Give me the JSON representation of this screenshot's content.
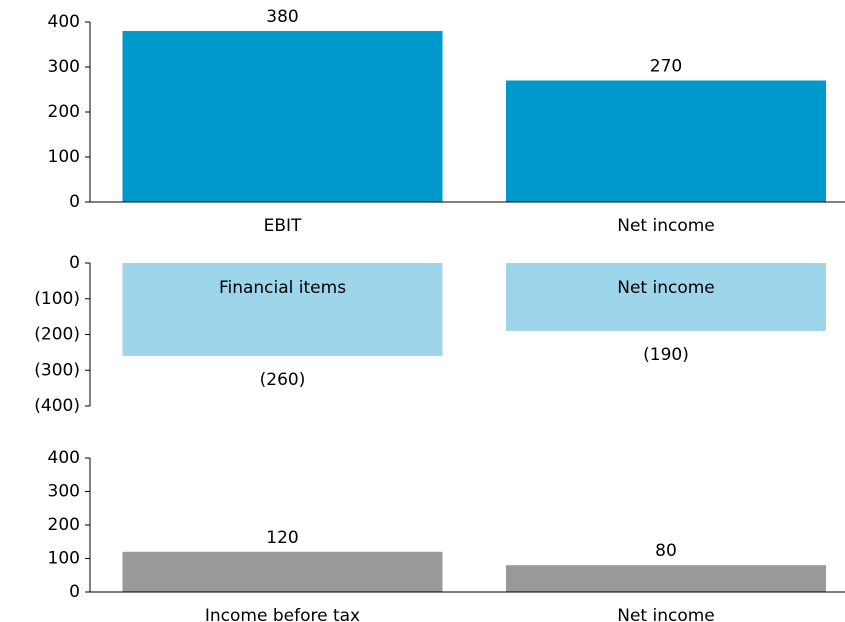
{
  "chart_data": [
    {
      "type": "bar",
      "categories": [
        "EBIT",
        "Net income"
      ],
      "values": [
        380,
        270
      ],
      "color": "#0099cc",
      "ylim": [
        0,
        400
      ],
      "yticks": [
        0,
        100,
        200,
        300,
        400
      ]
    },
    {
      "type": "bar",
      "categories": [
        "Financial items",
        "Net income"
      ],
      "values": [
        -260,
        -190
      ],
      "value_labels": [
        "(260)",
        "(190)"
      ],
      "color": "#9dd5ea",
      "ylim": [
        -400,
        0
      ],
      "yticks": [
        {
          "value": -400,
          "label": "(400)"
        },
        {
          "value": -300,
          "label": "(300)"
        },
        {
          "value": -200,
          "label": "(200)"
        },
        {
          "value": -100,
          "label": "(100)"
        },
        0
      ]
    },
    {
      "type": "bar",
      "categories": [
        "Income before tax",
        "Net income"
      ],
      "values": [
        120,
        80
      ],
      "color": "#999999",
      "ylim": [
        0,
        400
      ],
      "yticks": [
        0,
        100,
        200,
        300,
        400
      ]
    }
  ]
}
